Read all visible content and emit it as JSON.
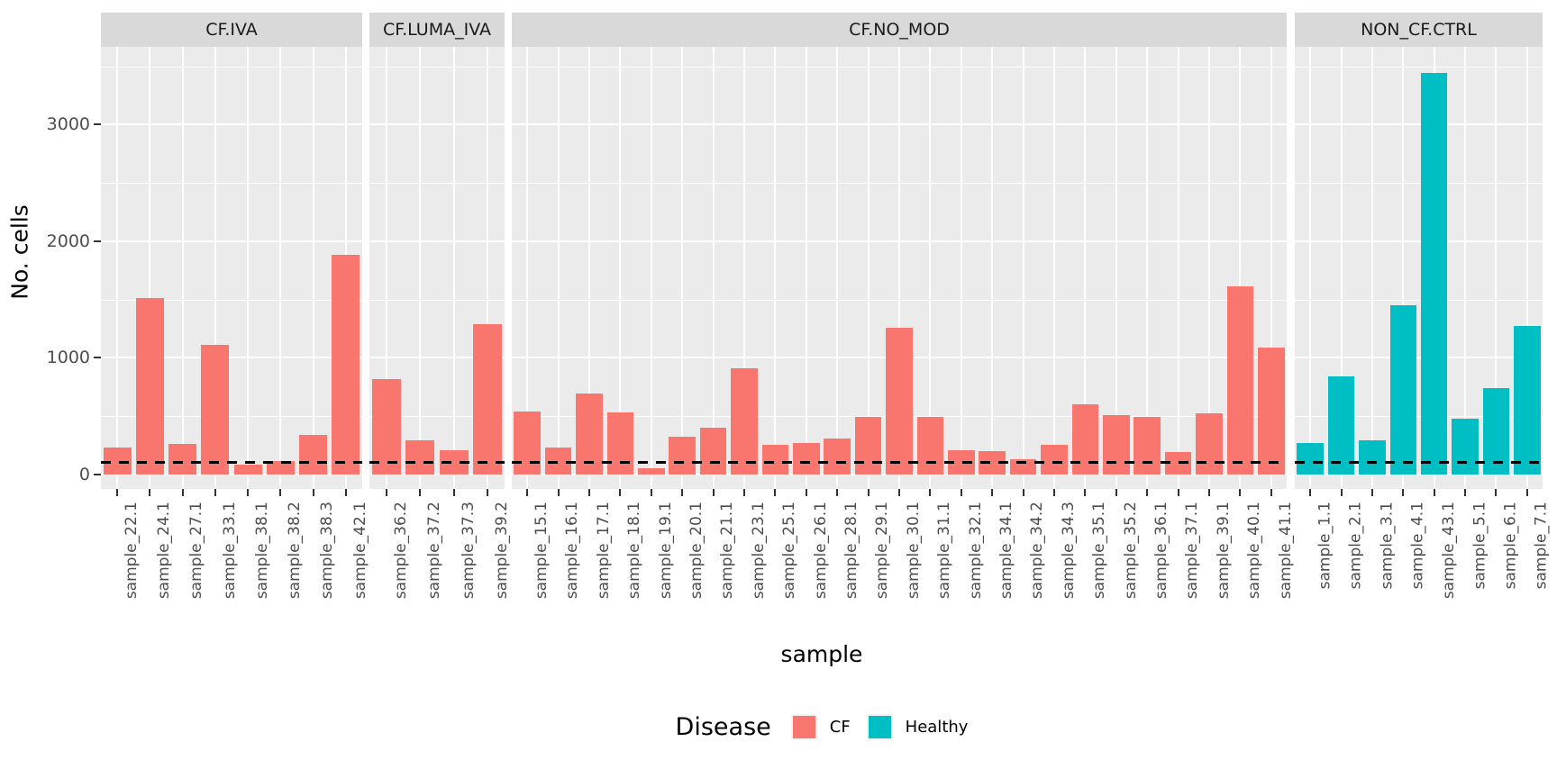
{
  "figure": {
    "y_axis_title": "No. cells",
    "x_axis_title": "sample",
    "legend": {
      "title": "Disease",
      "items": [
        {
          "label": "CF",
          "color": "#F8766D"
        },
        {
          "label": "Healthy",
          "color": "#00BFC4"
        }
      ]
    }
  },
  "theme": {
    "panel_background": "#EBEBEB",
    "strip_background": "#D9D9D9",
    "grid_color": "#FFFFFF",
    "tick_text_color": "#4D4D4D",
    "cf_color": "#F8766D",
    "healthy_color": "#00BFC4",
    "hline_color": "#000000"
  },
  "chart_data": {
    "type": "bar",
    "title": "",
    "xlabel": "sample",
    "ylabel": "No. cells",
    "ylim": [
      0,
      3670
    ],
    "yticks": [
      0,
      1000,
      2000,
      3000
    ],
    "minor_gridlines": [
      500,
      1500,
      2500,
      3500
    ],
    "grid": true,
    "legend_position": "bottom",
    "hline": {
      "value": 100,
      "style": "dashed",
      "color": "#000000"
    },
    "facets": [
      {
        "label": "CF.IVA",
        "group": "CF",
        "color": "#F8766D",
        "categories": [
          "sample_22.1",
          "sample_24.1",
          "sample_27.1",
          "sample_33.1",
          "sample_38.1",
          "sample_38.2",
          "sample_38.3",
          "sample_42.1"
        ],
        "values": [
          230,
          1510,
          260,
          1110,
          80,
          110,
          340,
          1880
        ]
      },
      {
        "label": "CF.LUMA_IVA",
        "group": "CF",
        "color": "#F8766D",
        "categories": [
          "sample_36.2",
          "sample_37.2",
          "sample_37.3",
          "sample_39.2"
        ],
        "values": [
          820,
          290,
          210,
          1290
        ]
      },
      {
        "label": "CF.NO_MOD",
        "group": "CF",
        "color": "#F8766D",
        "categories": [
          "sample_15.1",
          "sample_16.1",
          "sample_17.1",
          "sample_18.1",
          "sample_19.1",
          "sample_20.1",
          "sample_21.1",
          "sample_23.1",
          "sample_25.1",
          "sample_26.1",
          "sample_28.1",
          "sample_29.1",
          "sample_30.1",
          "sample_31.1",
          "sample_32.1",
          "sample_34.1",
          "sample_34.2",
          "sample_34.3",
          "sample_35.1",
          "sample_35.2",
          "sample_36.1",
          "sample_37.1",
          "sample_39.1",
          "sample_40.1",
          "sample_41.1"
        ],
        "values": [
          540,
          230,
          690,
          530,
          50,
          320,
          400,
          910,
          250,
          270,
          310,
          490,
          1260,
          490,
          210,
          200,
          130,
          255,
          600,
          510,
          490,
          190,
          520,
          1615,
          1090
        ]
      },
      {
        "label": "NON_CF.CTRL",
        "group": "Healthy",
        "color": "#00BFC4",
        "categories": [
          "sample_1.1",
          "sample_2.1",
          "sample_3.1",
          "sample_4.1",
          "sample_43.1",
          "sample_5.1",
          "sample_6.1",
          "sample_7.1"
        ],
        "values": [
          270,
          840,
          295,
          1450,
          3440,
          475,
          740,
          1270
        ]
      }
    ]
  }
}
